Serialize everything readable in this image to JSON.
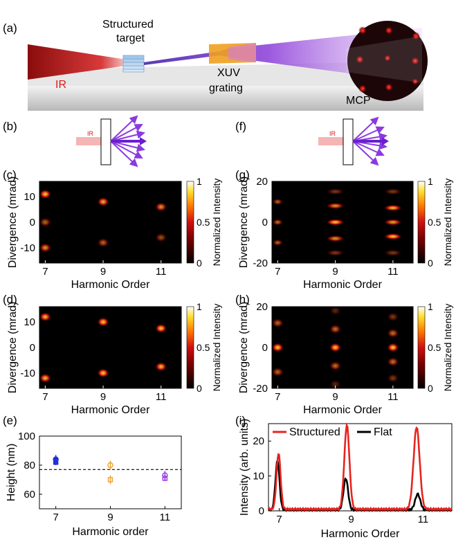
{
  "schematic": {
    "panel_label": "(a)",
    "ir": "IR",
    "target_line1": "Structured",
    "target_line2": "target",
    "grating_line1": "XUV",
    "grating_line2": "grating",
    "mcp": "MCP",
    "colors": {
      "ir": "#b01818",
      "xuv": "#7a2fd8",
      "ground": "#d9d9d9"
    }
  },
  "inset_b": {
    "panel_label": "(b)",
    "ir": "IR"
  },
  "inset_f": {
    "panel_label": "(f)",
    "ir": "IR"
  },
  "panel_labels": {
    "c": "(c)",
    "d": "(d)",
    "e": "(e)",
    "g": "(g)",
    "h": "(h)",
    "i": "(i)"
  },
  "colorbar": {
    "label": "Normalized Intensity",
    "ticks": [
      "0",
      "0.5",
      "1"
    ]
  },
  "chart_data": [
    {
      "id": "c",
      "type": "heatmap",
      "xlabel": "Harmonic Order",
      "ylabel": "Divergence (mrad)",
      "xticks": [
        "7",
        "9",
        "11"
      ],
      "yticks": [
        "10",
        "0",
        "-10"
      ],
      "xlim": [
        6.8,
        11.7
      ],
      "ylim": [
        -16,
        16
      ],
      "spots": [
        {
          "x": 7.0,
          "y": 11,
          "i": 0.95
        },
        {
          "x": 7.0,
          "y": 0,
          "i": 0.55
        },
        {
          "x": 7.0,
          "y": -10,
          "i": 0.75
        },
        {
          "x": 9.0,
          "y": 8,
          "i": 0.85
        },
        {
          "x": 9.0,
          "y": -8,
          "i": 0.55
        },
        {
          "x": 11.0,
          "y": 6,
          "i": 0.75
        },
        {
          "x": 11.0,
          "y": -6,
          "i": 0.45
        }
      ]
    },
    {
      "id": "g",
      "type": "heatmap",
      "xlabel": "Harmonic Order",
      "ylabel": "Divergence (mrad)",
      "xticks": [
        "7",
        "9",
        "11"
      ],
      "yticks": [
        "20",
        "0",
        "-20"
      ],
      "xlim": [
        6.8,
        11.7
      ],
      "ylim": [
        -20,
        20
      ],
      "spots": [
        {
          "x": 7.0,
          "y": 10,
          "i": 0.55
        },
        {
          "x": 7.0,
          "y": 0,
          "i": 0.6
        },
        {
          "x": 7.0,
          "y": -10,
          "i": 0.55
        },
        {
          "x": 9.0,
          "y": 15,
          "i": 0.35
        },
        {
          "x": 9.0,
          "y": 8,
          "i": 0.75
        },
        {
          "x": 9.0,
          "y": 0,
          "i": 0.95
        },
        {
          "x": 9.0,
          "y": -8,
          "i": 0.75
        },
        {
          "x": 9.0,
          "y": -15,
          "i": 0.35
        },
        {
          "x": 11.0,
          "y": 15,
          "i": 0.35
        },
        {
          "x": 11.0,
          "y": 7,
          "i": 0.9
        },
        {
          "x": 11.0,
          "y": 0,
          "i": 0.8
        },
        {
          "x": 11.0,
          "y": -7,
          "i": 0.95
        },
        {
          "x": 11.0,
          "y": -15,
          "i": 0.35
        }
      ]
    },
    {
      "id": "d",
      "type": "heatmap",
      "xlabel": "Harmonic Order",
      "ylabel": "Divergence (mrad)",
      "xticks": [
        "7",
        "9",
        "11"
      ],
      "yticks": [
        "10",
        "0",
        "-10"
      ],
      "xlim": [
        6.8,
        11.7
      ],
      "ylim": [
        -16,
        16
      ],
      "spots": [
        {
          "x": 7.0,
          "y": 12,
          "i": 0.9
        },
        {
          "x": 7.0,
          "y": -12,
          "i": 0.9
        },
        {
          "x": 9.0,
          "y": 10,
          "i": 0.95
        },
        {
          "x": 9.0,
          "y": -10,
          "i": 0.95
        },
        {
          "x": 11.0,
          "y": 7.5,
          "i": 0.95
        },
        {
          "x": 11.0,
          "y": -7.5,
          "i": 0.9
        }
      ]
    },
    {
      "id": "h",
      "type": "heatmap",
      "xlabel": "Harmonic Order",
      "ylabel": "Divergence (mrad)",
      "xticks": [
        "7",
        "9",
        "11"
      ],
      "yticks": [
        "20",
        "0",
        "-20"
      ],
      "xlim": [
        6.8,
        11.7
      ],
      "ylim": [
        -20,
        20
      ],
      "spots": [
        {
          "x": 7.0,
          "y": 12,
          "i": 0.55
        },
        {
          "x": 7.0,
          "y": 0,
          "i": 0.95
        },
        {
          "x": 7.0,
          "y": -12,
          "i": 0.55
        },
        {
          "x": 9.0,
          "y": 18,
          "i": 0.25
        },
        {
          "x": 9.0,
          "y": 9,
          "i": 0.6
        },
        {
          "x": 9.0,
          "y": 0,
          "i": 0.95
        },
        {
          "x": 9.0,
          "y": -9,
          "i": 0.6
        },
        {
          "x": 9.0,
          "y": -18,
          "i": 0.25
        },
        {
          "x": 11.0,
          "y": 15,
          "i": 0.35
        },
        {
          "x": 11.0,
          "y": 7,
          "i": 0.6
        },
        {
          "x": 11.0,
          "y": 0,
          "i": 0.95
        },
        {
          "x": 11.0,
          "y": -7,
          "i": 0.6
        },
        {
          "x": 11.0,
          "y": -15,
          "i": 0.35
        }
      ]
    },
    {
      "id": "e",
      "type": "scatter",
      "xlabel": "Harmonic order",
      "ylabel": "Height (nm)",
      "xticks": [
        "7",
        "9",
        "11"
      ],
      "yticks": [
        "60",
        "80",
        "100"
      ],
      "xlim": [
        6.4,
        11.6
      ],
      "ylim": [
        50,
        100
      ],
      "reference_line": 77,
      "points": [
        {
          "x": 7.0,
          "y": 84,
          "err": 3,
          "marker": "circle",
          "color": "#1f33d6"
        },
        {
          "x": 7.0,
          "y": 82,
          "err": 2,
          "marker": "square",
          "color": "#1f33d6"
        },
        {
          "x": 9.0,
          "y": 80,
          "err": 3,
          "marker": "circle",
          "color": "#f0a030"
        },
        {
          "x": 9.0,
          "y": 70,
          "err": 3,
          "marker": "square",
          "color": "#f0a030"
        },
        {
          "x": 11.0,
          "y": 73,
          "err": 3,
          "marker": "circle",
          "color": "#9a3ae0"
        },
        {
          "x": 11.0,
          "y": 71,
          "err": 2,
          "marker": "square",
          "color": "#9a3ae0"
        }
      ]
    },
    {
      "id": "i",
      "type": "line",
      "xlabel": "Harmonic Order",
      "ylabel": "Intensity (arb. units)",
      "xticks": [
        "7",
        "9",
        "11"
      ],
      "yticks": [
        "0",
        "10",
        "20"
      ],
      "xlim": [
        6.7,
        11.8
      ],
      "ylim": [
        0,
        25
      ],
      "series": [
        {
          "name": "Structured",
          "color": "#e8231e",
          "peaks": [
            {
              "x": 6.98,
              "h": 16,
              "w": 0.08
            },
            {
              "x": 8.88,
              "h": 24,
              "w": 0.1
            },
            {
              "x": 10.82,
              "h": 23.5,
              "w": 0.12
            }
          ],
          "base": 0.5
        },
        {
          "name": "Flat",
          "color": "#000000",
          "peaks": [
            {
              "x": 6.95,
              "h": 14,
              "w": 0.08
            },
            {
              "x": 8.85,
              "h": 9,
              "w": 0.09
            },
            {
              "x": 10.85,
              "h": 4.5,
              "w": 0.1
            }
          ],
          "base": 0.3
        }
      ]
    }
  ]
}
